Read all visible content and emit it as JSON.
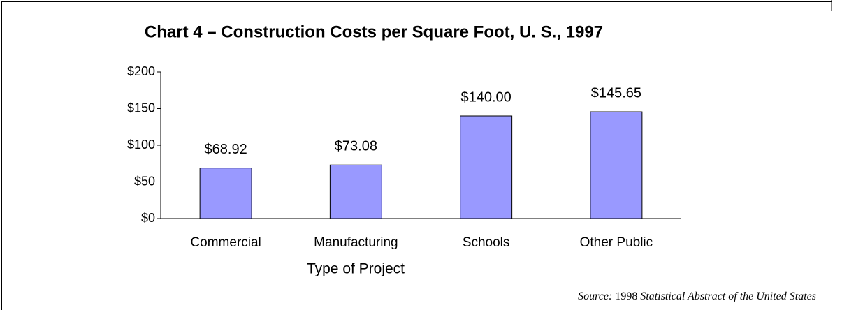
{
  "chart_data": {
    "type": "bar",
    "title": "Chart 4 – Construction Costs per Square Foot, U. S., 1997",
    "x_label": "Type of Project",
    "categories": [
      "Commercial",
      "Manufacturing",
      "Schools",
      "Other Public"
    ],
    "values": [
      68.92,
      73.08,
      140.0,
      145.65
    ],
    "value_labels": [
      "$68.92",
      "$73.08",
      "$140.00",
      "$145.65"
    ],
    "color": "#9999ff",
    "ylim": [
      0,
      200
    ],
    "yticks": [
      {
        "value": 0,
        "label": "$0"
      },
      {
        "value": 50,
        "label": "$50"
      },
      {
        "value": 100,
        "label": "$100"
      },
      {
        "value": 150,
        "label": "$150"
      },
      {
        "value": 200,
        "label": "$200"
      }
    ],
    "source": {
      "prefix": "Source:",
      "year": "1998",
      "work": "Statistical Abstract of the United States"
    }
  }
}
